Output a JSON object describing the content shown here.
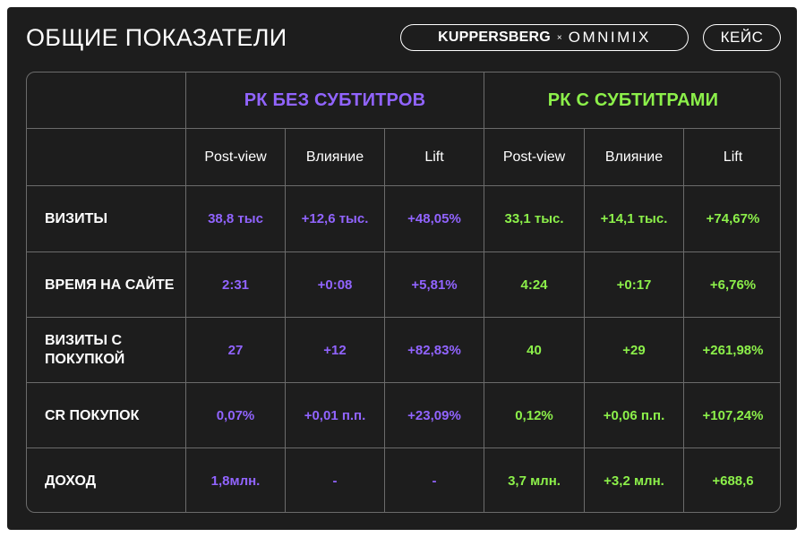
{
  "header": {
    "title": "ОБЩИЕ ПОКАЗАТЕЛИ",
    "brand_primary": "KUPPERSBERG",
    "brand_separator": "×",
    "brand_secondary": "OMNIMIX",
    "tag": "КЕЙС"
  },
  "colors": {
    "background": "#1d1d1d",
    "without_subtitles": "#9164ff",
    "with_subtitles": "#8cf04a",
    "grid_lines": "#6b6b6b"
  },
  "table": {
    "groups": [
      {
        "label": "РК БЕЗ СУБТИТРОВ"
      },
      {
        "label": "РК С СУБТИТРАМИ"
      }
    ],
    "subheaders": [
      "Post-view",
      "Влияние",
      "Lift",
      "Post-view",
      "Влияние",
      "Lift"
    ],
    "rows": [
      {
        "label": "ВИЗИТЫ",
        "values": [
          "38,8 тыс",
          "+12,6 тыс.",
          "+48,05%",
          "33,1 тыс.",
          "+14,1 тыс.",
          "+74,67%"
        ]
      },
      {
        "label": "ВРЕМЯ НА САЙТЕ",
        "values": [
          "2:31",
          "+0:08",
          "+5,81%",
          "4:24",
          "+0:17",
          "+6,76%"
        ]
      },
      {
        "label": "ВИЗИТЫ С ПОКУПКОЙ",
        "values": [
          "27",
          "+12",
          "+82,83%",
          "40",
          "+29",
          "+261,98%"
        ]
      },
      {
        "label": "CR ПОКУПОК",
        "values": [
          "0,07%",
          "+0,01 п.п.",
          "+23,09%",
          "0,12%",
          "+0,06 п.п.",
          "+107,24%"
        ]
      },
      {
        "label": "ДОХОД",
        "values": [
          "1,8млн.",
          "-",
          "-",
          "3,7 млн.",
          "+3,2 млн.",
          "+688,6"
        ]
      }
    ]
  }
}
